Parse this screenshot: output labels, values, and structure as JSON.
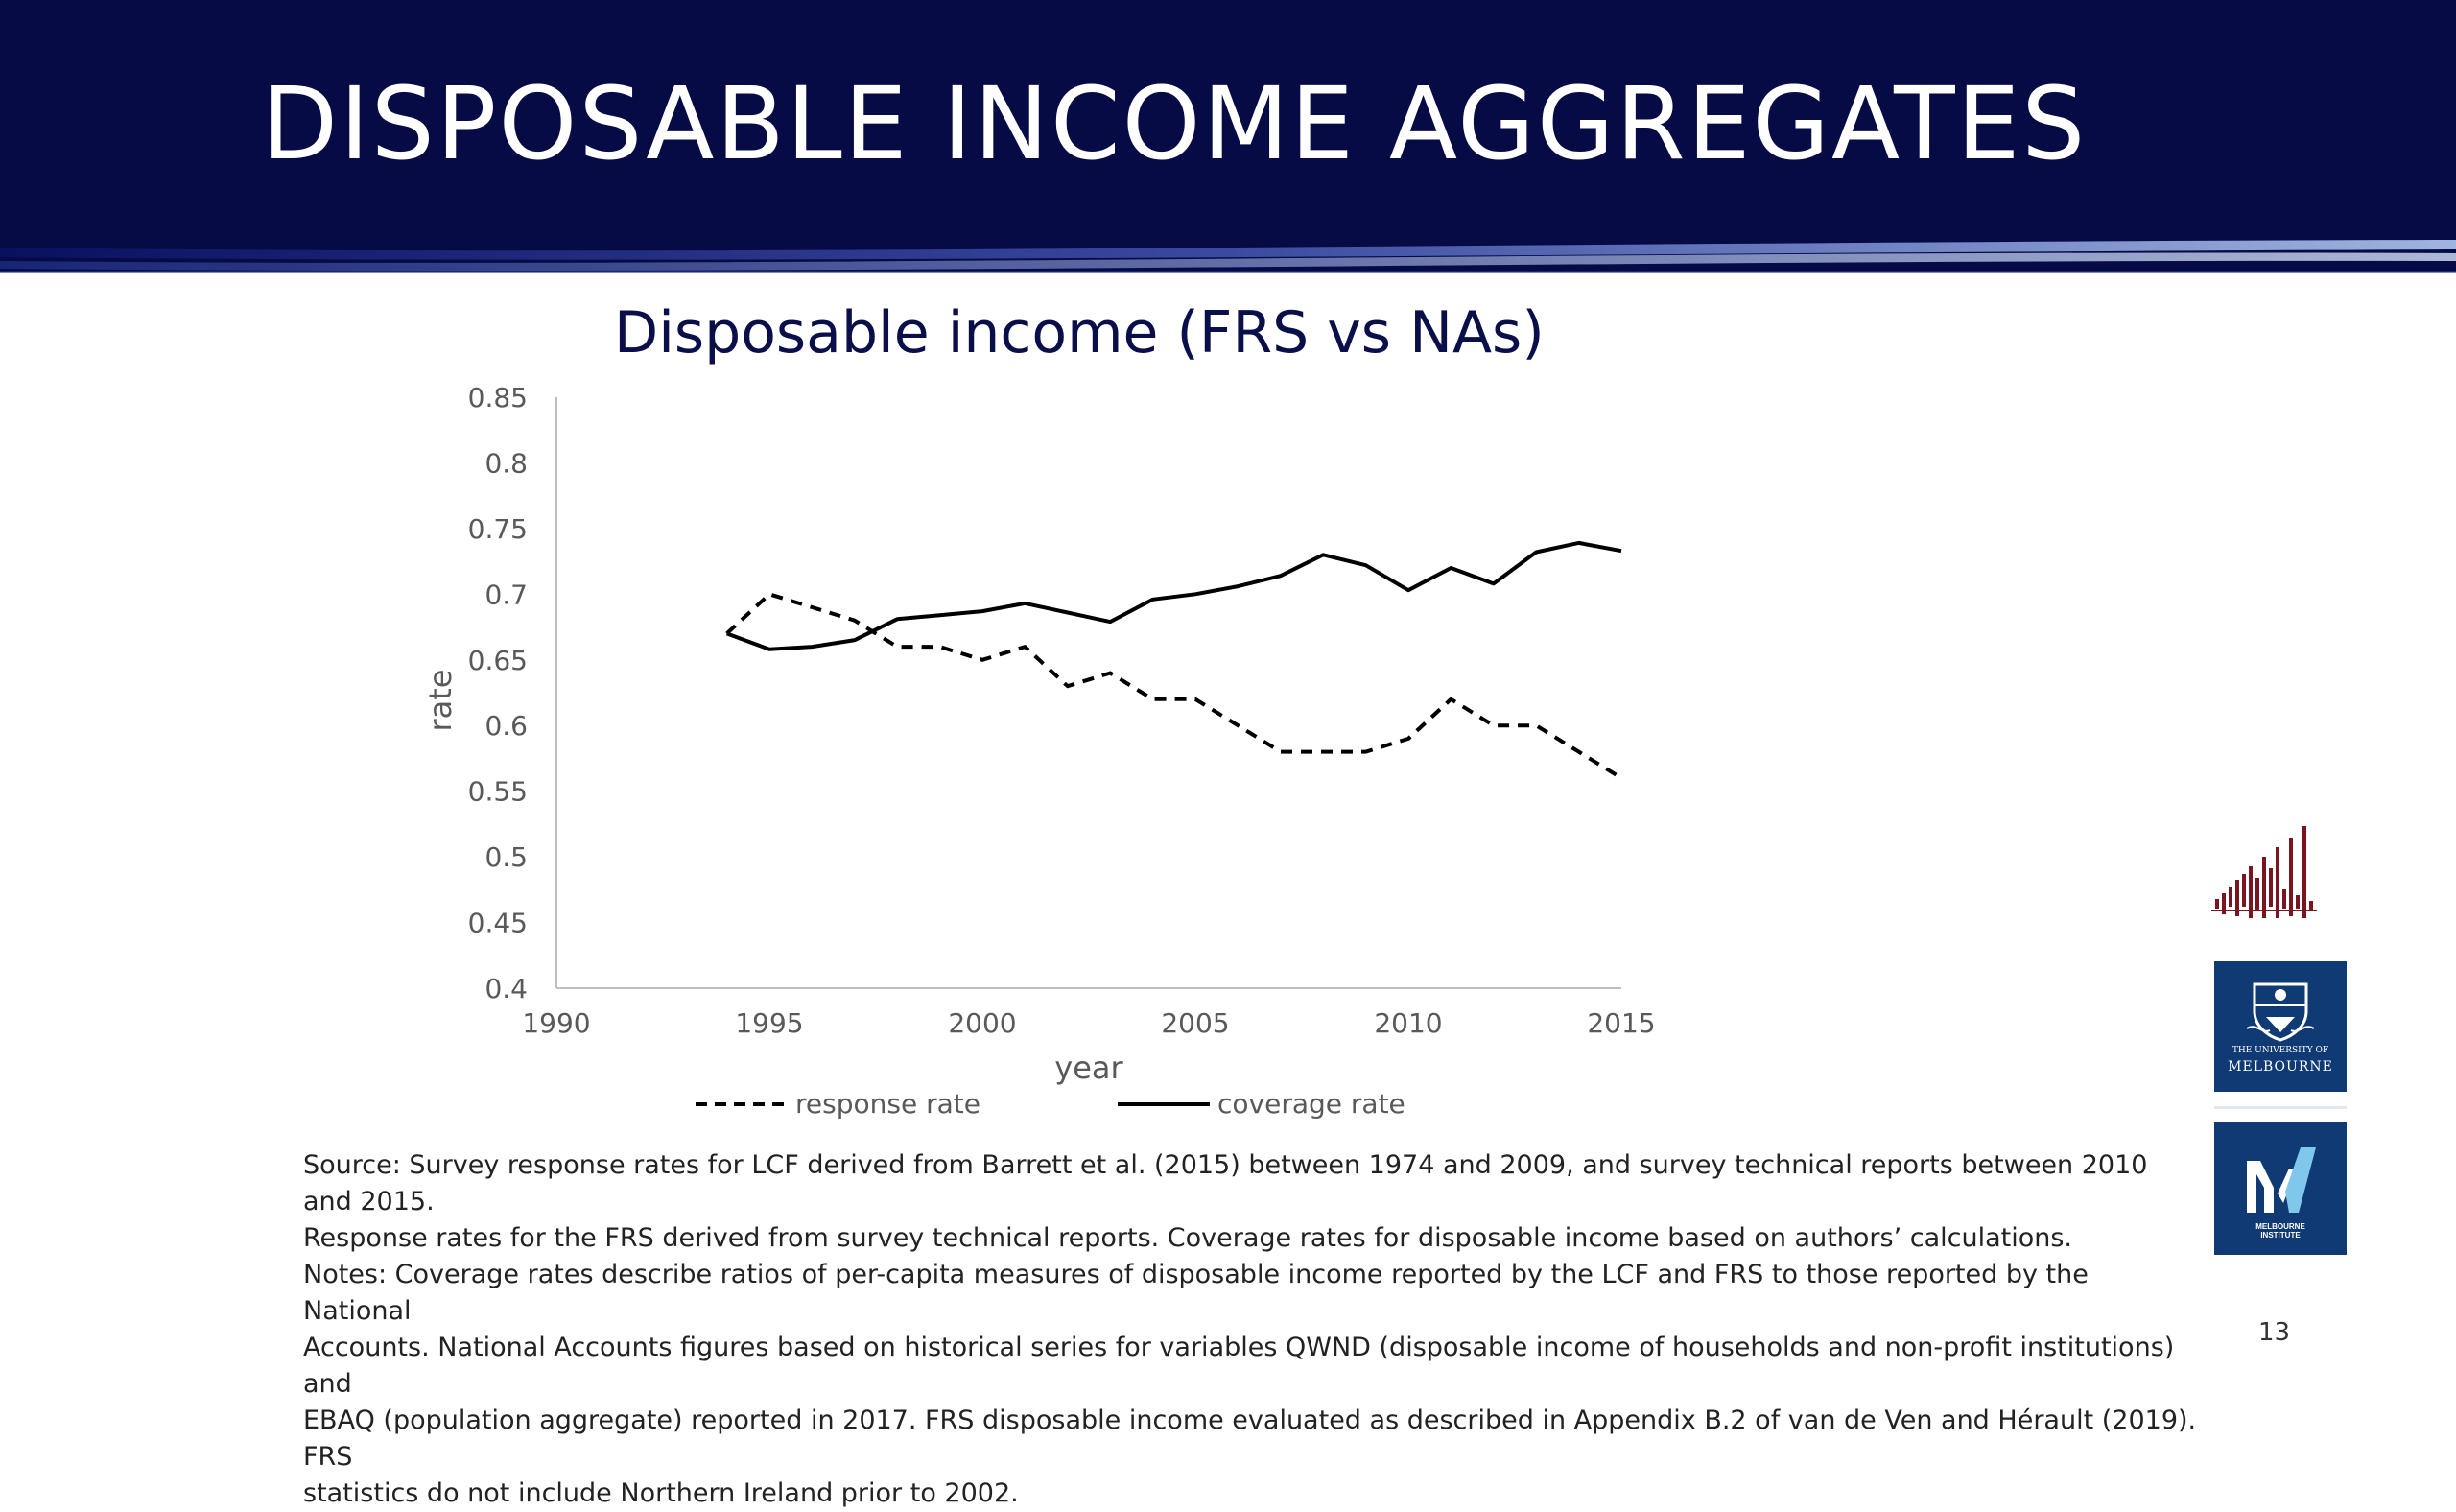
{
  "header": {
    "title": "DISPOSABLE INCOME AGGREGATES"
  },
  "chart_data": {
    "type": "line",
    "title": "Disposable income (FRS vs NAs)",
    "xlabel": "year",
    "ylabel": "rate",
    "xlim": [
      1990,
      2015
    ],
    "ylim": [
      0.4,
      0.85
    ],
    "xticks": [
      "1990",
      "1995",
      "2000",
      "2005",
      "2010",
      "2015"
    ],
    "yticks": [
      "0.85",
      "0.8",
      "0.75",
      "0.7",
      "0.65",
      "0.6",
      "0.55",
      "0.5",
      "0.45",
      "0.4"
    ],
    "grid": false,
    "legend_position": "bottom",
    "series": [
      {
        "name": "response rate",
        "style": "dashed",
        "color": "#000000",
        "x": [
          1994,
          1995,
          1996,
          1997,
          1998,
          1999,
          2000,
          2001,
          2002,
          2003,
          2004,
          2005,
          2006,
          2007,
          2008,
          2009,
          2010,
          2011,
          2012,
          2013,
          2014,
          2015
        ],
        "y": [
          0.67,
          0.7,
          0.69,
          0.68,
          0.66,
          0.66,
          0.65,
          0.66,
          0.63,
          0.64,
          0.62,
          0.62,
          0.6,
          0.58,
          0.58,
          0.58,
          0.59,
          0.62,
          0.6,
          0.6,
          0.58,
          0.56
        ]
      },
      {
        "name": "coverage rate",
        "style": "solid",
        "color": "#000000",
        "x": [
          1994,
          1995,
          1996,
          1997,
          1998,
          1999,
          2000,
          2001,
          2002,
          2003,
          2004,
          2005,
          2006,
          2007,
          2008,
          2009,
          2010,
          2011,
          2012,
          2013,
          2014,
          2015
        ],
        "y": [
          0.67,
          0.658,
          0.66,
          0.665,
          0.681,
          0.684,
          0.687,
          0.693,
          0.686,
          0.679,
          0.696,
          0.7,
          0.706,
          0.714,
          0.73,
          0.722,
          0.703,
          0.72,
          0.708,
          0.732,
          0.739,
          0.733
        ]
      }
    ]
  },
  "notes": {
    "line1": "Source:  Survey response rates for LCF derived from Barrett et al. (2015) between 1974 and 2009, and survey technical reports between 2010 and 2015.",
    "line2": "Response rates for the FRS derived from survey technical reports. Coverage rates for disposable income based on authors’ calculations.",
    "line3": "Notes: Coverage rates describe ratios of per-capita measures of disposable income reported by the LCF and FRS to those reported by the National",
    "line4": "Accounts.  National Accounts figures based on historical series for variables QWND (disposable income of households and non-profit institutions) and",
    "line5": "EBAQ (population aggregate) reported in 2017. FRS disposable income evaluated as described in Appendix B.2 of van de Ven and Hérault (2019). FRS",
    "line6": "statistics do not include Northern Ireland prior to 2002."
  },
  "logos": {
    "uom_line1": "THE UNIVERSITY OF",
    "uom_line2": "MELBOURNE",
    "mi_line1": "MELBOURNE",
    "mi_line2": "INSTITUTE"
  },
  "page_number": "13",
  "colors": {
    "header_bg": "#060b45",
    "chart_title": "#0a0f4a",
    "logo_blue": "#0f3a74",
    "bars_red": "#7a1520"
  }
}
